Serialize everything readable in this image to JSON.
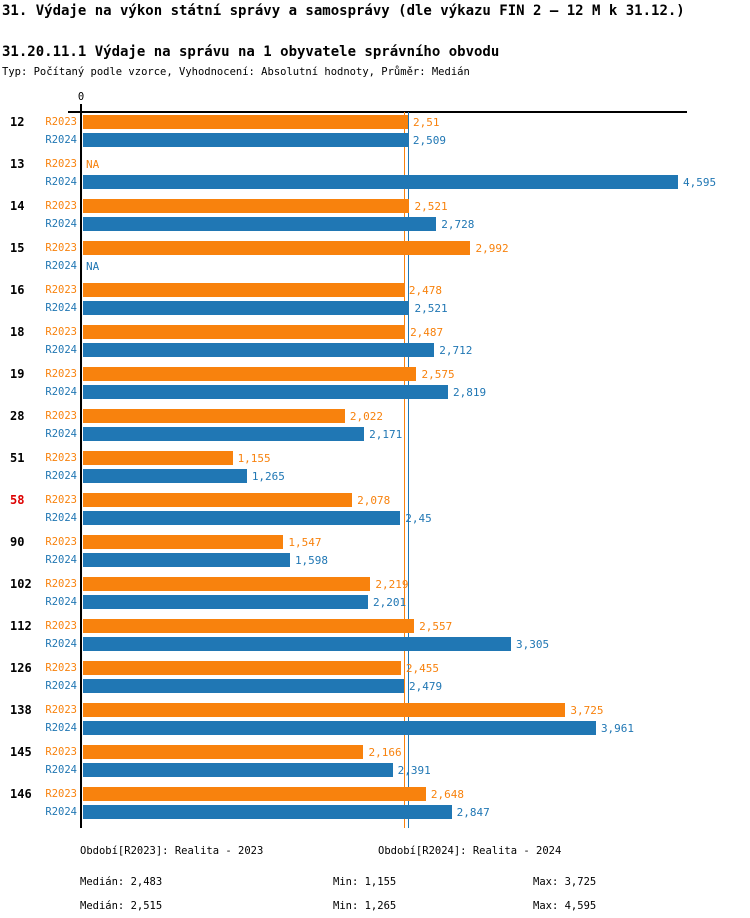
{
  "header": {
    "title": "31. Výdaje na výkon státní správy a samosprávy (dle výkazu FIN 2 – 12 M k 31.12.)",
    "subtitle": "31.20.11.1 Výdaje na správu na 1 obyvatele správního obvodu",
    "meta": "Typ: Počítaný podle vzorce, Vyhodnocení: Absolutní hodnoty, Průměr: Medián"
  },
  "colors": {
    "r2023": "#F8820D",
    "r2024": "#2077B4",
    "highlight_id": "#DD0000",
    "normal_id": "#000000",
    "axis": "#000000"
  },
  "chart_data": {
    "type": "bar",
    "orientation": "horizontal",
    "axis_zero_label": "0",
    "xlim": [
      0,
      4.66
    ],
    "grid": false,
    "na_label": "NA",
    "categories": [
      "12",
      "13",
      "14",
      "15",
      "16",
      "18",
      "19",
      "28",
      "51",
      "58",
      "90",
      "102",
      "112",
      "126",
      "138",
      "145",
      "146"
    ],
    "highlighted_categories": [
      "58"
    ],
    "series": [
      {
        "name": "R2023",
        "color_key": "r2023",
        "values": [
          2.51,
          null,
          2.521,
          2.992,
          2.478,
          2.487,
          2.575,
          2.022,
          1.155,
          2.078,
          1.547,
          2.219,
          2.557,
          2.455,
          3.725,
          2.166,
          2.648
        ],
        "labels": [
          "2,51",
          "NA",
          "2,521",
          "2,992",
          "2,478",
          "2,487",
          "2,575",
          "2,022",
          "1,155",
          "2,078",
          "1,547",
          "2,219",
          "2,557",
          "2,455",
          "3,725",
          "2,166",
          "2,648"
        ]
      },
      {
        "name": "R2024",
        "color_key": "r2024",
        "values": [
          2.509,
          4.595,
          2.728,
          null,
          2.521,
          2.712,
          2.819,
          2.171,
          1.265,
          2.45,
          1.598,
          2.201,
          3.305,
          2.479,
          3.961,
          2.391,
          2.847
        ],
        "labels": [
          "2,509",
          "4,595",
          "2,728",
          "NA",
          "2,521",
          "2,712",
          "2,819",
          "2,171",
          "1,265",
          "2,45",
          "1,598",
          "2,201",
          "3,305",
          "2,479",
          "3,961",
          "2,391",
          "2,847"
        ]
      }
    ],
    "median_lines": [
      {
        "series": "R2023",
        "value": 2.483,
        "color_key": "r2023"
      },
      {
        "series": "R2024",
        "value": 2.515,
        "color_key": "r2024"
      }
    ]
  },
  "footer": {
    "legend": [
      {
        "text": "Období[R2023]: Realita - 2023",
        "color_key": "r2023"
      },
      {
        "text": "Období[R2024]: Realita - 2024",
        "color_key": "r2024"
      }
    ],
    "stats": [
      {
        "median": "Medián: 2,483",
        "min": "Min: 1,155",
        "max": "Max: 3,725",
        "color_key": "r2023"
      },
      {
        "median": "Medián: 2,515",
        "min": "Min: 1,265",
        "max": "Max: 4,595",
        "color_key": "r2024"
      }
    ]
  }
}
